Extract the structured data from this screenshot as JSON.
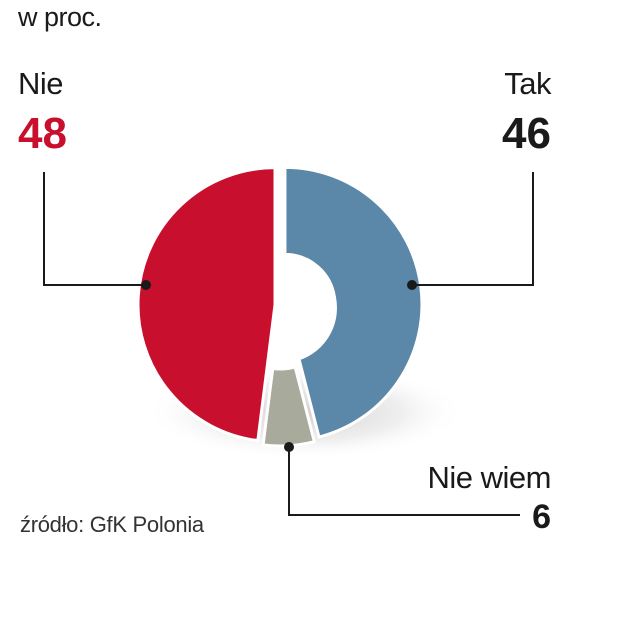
{
  "unit_note": "w proc.",
  "source": "źródło: GfK Polonia",
  "colors": {
    "nie": "#c8102e",
    "tak": "#5b87a8",
    "nie_wiem": "#a8aa9c",
    "text_nie": "#c8102e",
    "text_dark": "#1a1a1a"
  },
  "chart_data": {
    "type": "pie",
    "donut": true,
    "unit": "w proc.",
    "slices": [
      {
        "label": "Tak",
        "value": 46,
        "color": "#5b87a8"
      },
      {
        "label": "Nie wiem",
        "value": 6,
        "color": "#a8aa9c"
      },
      {
        "label": "Nie",
        "value": 48,
        "color": "#c8102e"
      }
    ]
  }
}
